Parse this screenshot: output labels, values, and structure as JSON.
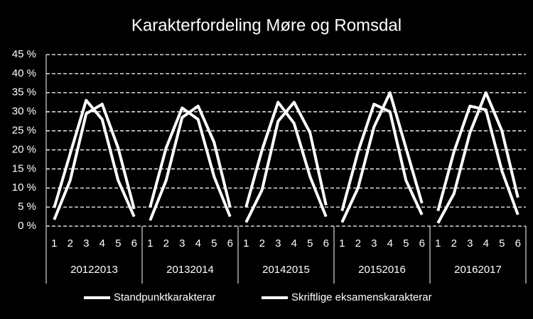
{
  "chart_data": {
    "type": "line",
    "title": "Karakterfordeling Møre og Romsdal",
    "categories": [
      "1",
      "2",
      "3",
      "4",
      "5",
      "6",
      "1",
      "2",
      "3",
      "4",
      "5",
      "6",
      "1",
      "2",
      "3",
      "4",
      "5",
      "6",
      "1",
      "2",
      "3",
      "4",
      "5",
      "6",
      "1",
      "2",
      "3",
      "4",
      "5",
      "6"
    ],
    "groups": [
      "20122013",
      "20132014",
      "20142015",
      "20152016",
      "20162017"
    ],
    "series": [
      {
        "name": "Standpunktkarakterar",
        "color": "#ffffff",
        "values": [
          1.7,
          12,
          29.5,
          32,
          20.5,
          4.5,
          1.5,
          12,
          28.5,
          31.5,
          22,
          5,
          1,
          9.5,
          27.5,
          32.5,
          24.5,
          5.5,
          1,
          10,
          26,
          35,
          20.5,
          6,
          0.8,
          8.5,
          24.5,
          35,
          25,
          7.5
        ]
      },
      {
        "name": "Skriftlige eksamenskarakterar",
        "color": "#ffffff",
        "values": [
          4.8,
          19,
          33,
          28,
          12,
          2.5,
          5,
          20.5,
          31,
          28,
          13,
          2.5,
          5,
          20,
          32.5,
          27,
          13,
          2.5,
          4,
          19.5,
          32,
          30,
          12,
          3,
          4,
          19.5,
          31.5,
          30.5,
          14.5,
          3
        ]
      }
    ],
    "ylim": [
      0,
      45
    ],
    "yticks": [
      {
        "value": 0,
        "label": "0 %"
      },
      {
        "value": 5,
        "label": "5 %"
      },
      {
        "value": 10,
        "label": "10 %"
      },
      {
        "value": 15,
        "label": "15 %"
      },
      {
        "value": 20,
        "label": "20 %"
      },
      {
        "value": 25,
        "label": "25 %"
      },
      {
        "value": 30,
        "label": "30 %"
      },
      {
        "value": 35,
        "label": "35 %"
      },
      {
        "value": 40,
        "label": "40 %"
      },
      {
        "value": 45,
        "label": "45 %"
      }
    ],
    "grid": true,
    "legend": "bottom"
  }
}
